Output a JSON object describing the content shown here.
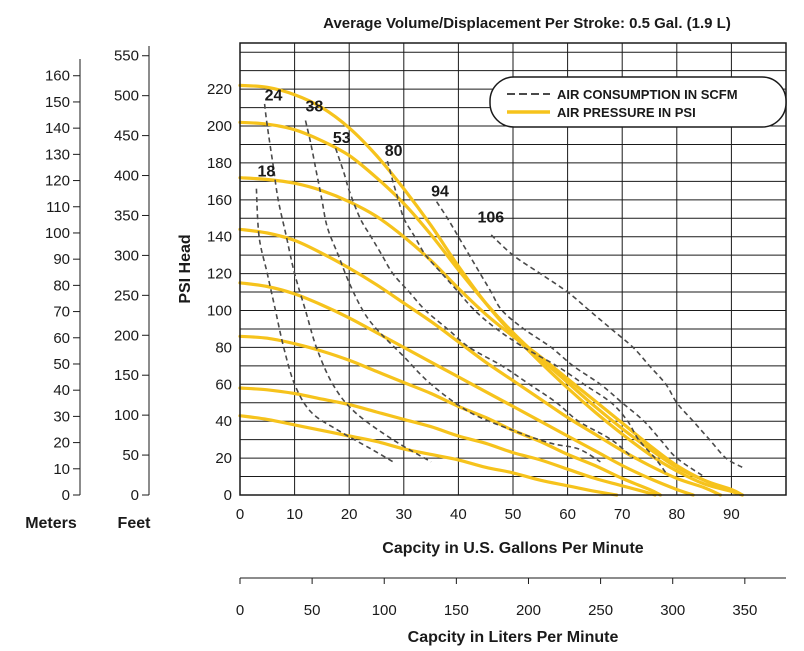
{
  "chart_data": {
    "type": "line",
    "title": "Average Volume/Displacement Per Stroke: 0.5 Gal. (1.9 L)",
    "xlabel": "Capcity in U.S. Gallons Per Minute",
    "xlabel_secondary": "Capcity in Liters Per Minute",
    "ylabel": "PSI Head",
    "xlim": [
      0,
      100
    ],
    "ylim": [
      0,
      245
    ],
    "x_ticks": [
      "0",
      "10",
      "20",
      "30",
      "40",
      "50",
      "60",
      "70",
      "80",
      "90"
    ],
    "x_ticks_values": [
      0,
      10,
      20,
      30,
      40,
      50,
      60,
      70,
      80,
      90
    ],
    "y_ticks": [
      "0",
      "20",
      "40",
      "60",
      "80",
      "100",
      "120",
      "140",
      "160",
      "180",
      "200",
      "220"
    ],
    "y_ticks_values": [
      0,
      20,
      40,
      60,
      80,
      100,
      120,
      140,
      160,
      180,
      200,
      220
    ],
    "liters_ticks": [
      "0",
      "50",
      "100",
      "150",
      "200",
      "250",
      "300",
      "350"
    ],
    "liters_ticks_values": [
      0,
      50,
      100,
      150,
      200,
      250,
      300,
      350
    ],
    "feet_label": "Feet",
    "feet_ticks": [
      "0",
      "50",
      "100",
      "150",
      "200",
      "250",
      "300",
      "350",
      "400",
      "450",
      "500",
      "550"
    ],
    "feet_ticks_values": [
      0,
      50,
      100,
      150,
      200,
      250,
      300,
      350,
      400,
      450,
      500,
      550
    ],
    "meters_label": "Meters",
    "meters_ticks": [
      "0",
      "10",
      "20",
      "30",
      "40",
      "50",
      "60",
      "70",
      "80",
      "90",
      "100",
      "110",
      "120",
      "130",
      "140",
      "150",
      "160"
    ],
    "meters_ticks_values": [
      0,
      10,
      20,
      30,
      40,
      50,
      60,
      70,
      80,
      90,
      100,
      110,
      120,
      130,
      140,
      150,
      160
    ],
    "legend": {
      "position": "top-right",
      "entries": [
        {
          "label": "AIR CONSUMPTION IN SCFM",
          "style": "dashed",
          "color": "#4a4a4a"
        },
        {
          "label": "AIR PRESSURE IN PSI",
          "style": "solid",
          "color": "#f6c31c"
        }
      ]
    },
    "grid": true,
    "pressure_series": [
      {
        "points": [
          [
            0,
            222
          ],
          [
            5,
            221
          ],
          [
            10,
            217
          ],
          [
            15,
            210
          ],
          [
            20,
            199
          ],
          [
            25,
            184
          ],
          [
            30,
            166
          ],
          [
            35,
            146
          ],
          [
            40,
            124
          ],
          [
            45,
            104
          ],
          [
            50,
            87
          ],
          [
            55,
            72
          ],
          [
            60,
            58
          ],
          [
            65,
            45
          ],
          [
            70,
            33
          ],
          [
            75,
            22
          ],
          [
            80,
            13
          ],
          [
            85,
            6
          ],
          [
            90,
            2
          ],
          [
            92,
            0
          ]
        ]
      },
      {
        "points": [
          [
            0,
            202
          ],
          [
            5,
            201
          ],
          [
            10,
            198
          ],
          [
            15,
            192
          ],
          [
            20,
            184
          ],
          [
            25,
            172
          ],
          [
            30,
            158
          ],
          [
            35,
            141
          ],
          [
            40,
            122
          ],
          [
            45,
            104
          ],
          [
            50,
            88
          ],
          [
            55,
            74
          ],
          [
            60,
            61
          ],
          [
            65,
            48
          ],
          [
            70,
            36
          ],
          [
            75,
            25
          ],
          [
            80,
            15
          ],
          [
            85,
            8
          ],
          [
            90,
            2
          ],
          [
            92,
            0
          ]
        ]
      },
      {
        "points": [
          [
            0,
            172
          ],
          [
            5,
            171
          ],
          [
            10,
            169
          ],
          [
            15,
            165
          ],
          [
            20,
            159
          ],
          [
            25,
            151
          ],
          [
            30,
            140
          ],
          [
            35,
            127
          ],
          [
            40,
            112
          ],
          [
            45,
            98
          ],
          [
            50,
            86
          ],
          [
            55,
            75
          ],
          [
            60,
            63
          ],
          [
            65,
            51
          ],
          [
            70,
            39
          ],
          [
            75,
            27
          ],
          [
            80,
            16
          ],
          [
            85,
            8
          ],
          [
            90,
            3
          ],
          [
            92,
            0
          ]
        ]
      },
      {
        "points": [
          [
            0,
            144
          ],
          [
            5,
            142
          ],
          [
            10,
            138
          ],
          [
            15,
            131
          ],
          [
            20,
            123
          ],
          [
            25,
            114
          ],
          [
            30,
            104
          ],
          [
            35,
            94
          ],
          [
            40,
            83
          ],
          [
            45,
            72
          ],
          [
            50,
            62
          ],
          [
            55,
            52
          ],
          [
            60,
            42
          ],
          [
            65,
            33
          ],
          [
            70,
            24
          ],
          [
            75,
            16
          ],
          [
            80,
            9
          ],
          [
            85,
            4
          ],
          [
            88,
            0
          ]
        ]
      },
      {
        "points": [
          [
            0,
            115
          ],
          [
            5,
            113
          ],
          [
            10,
            109
          ],
          [
            15,
            103
          ],
          [
            20,
            96
          ],
          [
            25,
            88
          ],
          [
            30,
            80
          ],
          [
            35,
            72
          ],
          [
            40,
            64
          ],
          [
            45,
            56
          ],
          [
            50,
            48
          ],
          [
            55,
            40
          ],
          [
            60,
            32
          ],
          [
            65,
            24
          ],
          [
            70,
            16
          ],
          [
            75,
            9
          ],
          [
            80,
            3
          ],
          [
            83,
            0
          ]
        ]
      },
      {
        "points": [
          [
            0,
            86
          ],
          [
            5,
            85
          ],
          [
            10,
            82
          ],
          [
            15,
            78
          ],
          [
            20,
            73
          ],
          [
            25,
            67
          ],
          [
            30,
            61
          ],
          [
            35,
            55
          ],
          [
            40,
            48
          ],
          [
            45,
            42
          ],
          [
            50,
            35
          ],
          [
            55,
            29
          ],
          [
            60,
            22
          ],
          [
            65,
            16
          ],
          [
            70,
            9
          ],
          [
            75,
            3
          ],
          [
            77,
            0
          ]
        ]
      },
      {
        "points": [
          [
            0,
            58
          ],
          [
            5,
            57
          ],
          [
            10,
            55
          ],
          [
            15,
            52
          ],
          [
            20,
            49
          ],
          [
            25,
            45
          ],
          [
            30,
            41
          ],
          [
            35,
            37
          ],
          [
            40,
            32
          ],
          [
            45,
            28
          ],
          [
            50,
            23
          ],
          [
            55,
            19
          ],
          [
            60,
            14
          ],
          [
            65,
            9
          ],
          [
            70,
            5
          ],
          [
            75,
            1
          ],
          [
            76,
            0
          ]
        ]
      },
      {
        "points": [
          [
            0,
            43
          ],
          [
            5,
            41
          ],
          [
            10,
            38
          ],
          [
            15,
            35
          ],
          [
            20,
            32
          ],
          [
            25,
            29
          ],
          [
            30,
            25
          ],
          [
            35,
            22
          ],
          [
            40,
            19
          ],
          [
            45,
            15
          ],
          [
            50,
            12
          ],
          [
            55,
            8
          ],
          [
            60,
            5
          ],
          [
            65,
            2
          ],
          [
            69,
            0
          ]
        ]
      }
    ],
    "air_series": [
      {
        "name": "18",
        "label": "18",
        "label_at": [
          3.2,
          176
        ],
        "points": [
          [
            3,
            166
          ],
          [
            3.5,
            140
          ],
          [
            5,
            120
          ],
          [
            6.5,
            100
          ],
          [
            8,
            80
          ],
          [
            10,
            60
          ],
          [
            13,
            45
          ],
          [
            18,
            35
          ],
          [
            24,
            25
          ],
          [
            28,
            18
          ]
        ]
      },
      {
        "name": "24",
        "label": "24",
        "label_at": [
          4.5,
          217
        ],
        "points": [
          [
            4.5,
            212
          ],
          [
            5,
            200
          ],
          [
            6,
            180
          ],
          [
            7,
            160
          ],
          [
            8.5,
            140
          ],
          [
            10,
            120
          ],
          [
            12,
            100
          ],
          [
            14,
            80
          ],
          [
            17,
            60
          ],
          [
            21,
            45
          ],
          [
            28,
            30
          ],
          [
            35,
            18
          ]
        ]
      },
      {
        "name": "38",
        "label": "38",
        "label_at": [
          12,
          211
        ],
        "points": [
          [
            12,
            203
          ],
          [
            13,
            190
          ],
          [
            14,
            175
          ],
          [
            15,
            160
          ],
          [
            16,
            145
          ],
          [
            18,
            130
          ],
          [
            20,
            115
          ],
          [
            22.5,
            100
          ],
          [
            25,
            90
          ],
          [
            30,
            75
          ],
          [
            35,
            60
          ],
          [
            42,
            45
          ],
          [
            50,
            35
          ],
          [
            57,
            28
          ],
          [
            62,
            25
          ],
          [
            66,
            18
          ]
        ]
      },
      {
        "name": "53",
        "label": "53",
        "label_at": [
          17,
          194
        ],
        "points": [
          [
            17.5,
            188
          ],
          [
            19,
            175
          ],
          [
            20,
            165
          ],
          [
            22,
            150
          ],
          [
            24,
            140
          ],
          [
            26,
            130
          ],
          [
            28,
            120
          ],
          [
            31,
            110
          ],
          [
            34,
            100
          ],
          [
            38,
            90
          ],
          [
            42,
            80
          ],
          [
            48,
            70
          ],
          [
            53,
            60
          ],
          [
            58,
            50
          ],
          [
            62,
            40
          ],
          [
            68,
            30
          ],
          [
            72,
            20
          ]
        ]
      },
      {
        "name": "80",
        "label": "80",
        "label_at": [
          26.5,
          187
        ],
        "points": [
          [
            27,
            181
          ],
          [
            28,
            170
          ],
          [
            29,
            160
          ],
          [
            30,
            150
          ],
          [
            32,
            140
          ],
          [
            34,
            130
          ],
          [
            37,
            120
          ],
          [
            40,
            110
          ],
          [
            43,
            100
          ],
          [
            47,
            90
          ],
          [
            52,
            80
          ],
          [
            58,
            70
          ],
          [
            63,
            60
          ],
          [
            68,
            50
          ],
          [
            71,
            40
          ],
          [
            73,
            30
          ],
          [
            76,
            20
          ],
          [
            78,
            12
          ]
        ]
      },
      {
        "name": "94",
        "label": "94",
        "label_at": [
          35,
          165
        ],
        "points": [
          [
            36,
            159
          ],
          [
            38,
            150
          ],
          [
            40,
            140
          ],
          [
            42,
            130
          ],
          [
            44,
            120
          ],
          [
            46,
            110
          ],
          [
            48,
            100
          ],
          [
            52,
            90
          ],
          [
            57,
            80
          ],
          [
            61,
            70
          ],
          [
            66,
            60
          ],
          [
            70,
            50
          ],
          [
            74,
            40
          ],
          [
            77,
            30
          ],
          [
            80,
            20
          ],
          [
            85,
            10
          ]
        ]
      },
      {
        "name": "106",
        "label": "106",
        "label_at": [
          43.5,
          151
        ],
        "points": [
          [
            46,
            141
          ],
          [
            50,
            130
          ],
          [
            55,
            120
          ],
          [
            60,
            110
          ],
          [
            64,
            100
          ],
          [
            68,
            90
          ],
          [
            72,
            80
          ],
          [
            75,
            70
          ],
          [
            78,
            60
          ],
          [
            80,
            50
          ],
          [
            83,
            40
          ],
          [
            86,
            30
          ],
          [
            89,
            20
          ],
          [
            92,
            15
          ]
        ]
      }
    ]
  }
}
